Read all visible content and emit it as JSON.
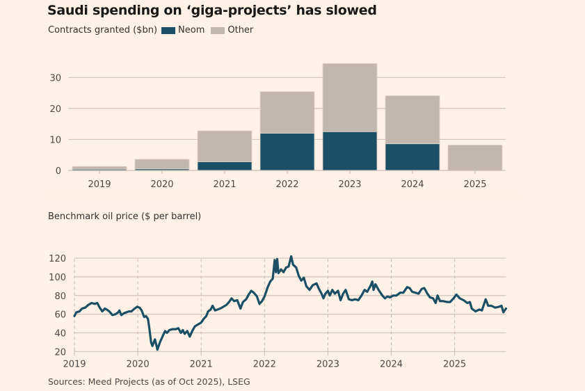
{
  "title": "Saudi spending on ‘giga-projects’ has slowed",
  "colors": {
    "background": "#FFF1E5",
    "neom": "#1A4F66",
    "other": "#C1B7AE",
    "line": "#1A4F66",
    "grid": "#CEC4BB",
    "text": "#33302E"
  },
  "source": "Sources: Meed Projects (as of Oct 2025), LSEG",
  "chart_data": [
    {
      "type": "bar",
      "stacked": true,
      "subtitle": "Contracts granted ($bn)",
      "legend": [
        {
          "name": "Neom",
          "color": "#1A4F66"
        },
        {
          "name": "Other",
          "color": "#C1B7AE"
        }
      ],
      "legend_placement": "top-left, inline with subtitle",
      "categories": [
        "2019",
        "2020",
        "2021",
        "2022",
        "2023",
        "2024",
        "2025"
      ],
      "series": [
        {
          "name": "Neom",
          "values": [
            0.4,
            0.5,
            2.8,
            12.0,
            12.5,
            8.6,
            0.0
          ]
        },
        {
          "name": "Other",
          "values": [
            0.9,
            3.1,
            10.0,
            13.4,
            22.0,
            15.5,
            8.2
          ]
        }
      ],
      "totals": [
        1.3,
        3.6,
        12.8,
        25.4,
        34.5,
        24.1,
        8.2
      ],
      "ylim": [
        0,
        35
      ],
      "yticks": [
        0,
        10,
        20,
        30
      ],
      "grid": true,
      "xlabel": "",
      "ylabel": ""
    },
    {
      "type": "line",
      "subtitle": "Benchmark oil price ($ per barrel)",
      "xlim": [
        2019.0,
        2025.81
      ],
      "ylim": [
        20,
        125
      ],
      "yticks": [
        20,
        40,
        60,
        80,
        100,
        120
      ],
      "xticks": [
        "2019",
        "2020",
        "2021",
        "2022",
        "2023",
        "2024",
        "2025"
      ],
      "grid": true,
      "xlabel": "",
      "ylabel": "",
      "series": [
        {
          "name": "Benchmark oil price",
          "points": [
            [
              2019.0,
              58
            ],
            [
              2019.03,
              62
            ],
            [
              2019.08,
              63
            ],
            [
              2019.12,
              66
            ],
            [
              2019.17,
              67
            ],
            [
              2019.22,
              70
            ],
            [
              2019.27,
              72
            ],
            [
              2019.32,
              71
            ],
            [
              2019.36,
              72
            ],
            [
              2019.4,
              67
            ],
            [
              2019.44,
              63
            ],
            [
              2019.48,
              66
            ],
            [
              2019.51,
              65
            ],
            [
              2019.55,
              63
            ],
            [
              2019.6,
              59
            ],
            [
              2019.65,
              60
            ],
            [
              2019.69,
              62
            ],
            [
              2019.71,
              64
            ],
            [
              2019.74,
              59
            ],
            [
              2019.78,
              61
            ],
            [
              2019.82,
              62
            ],
            [
              2019.86,
              63
            ],
            [
              2019.9,
              63
            ],
            [
              2019.95,
              66
            ],
            [
              2019.99,
              68
            ],
            [
              2020.03,
              67
            ],
            [
              2020.06,
              64
            ],
            [
              2020.1,
              57
            ],
            [
              2020.13,
              58
            ],
            [
              2020.16,
              55
            ],
            [
              2020.18,
              46
            ],
            [
              2020.21,
              30
            ],
            [
              2020.23,
              26
            ],
            [
              2020.27,
              33
            ],
            [
              2020.29,
              28
            ],
            [
              2020.31,
              22
            ],
            [
              2020.35,
              30
            ],
            [
              2020.39,
              36
            ],
            [
              2020.43,
              42
            ],
            [
              2020.46,
              40
            ],
            [
              2020.5,
              43
            ],
            [
              2020.55,
              44
            ],
            [
              2020.6,
              44
            ],
            [
              2020.64,
              45
            ],
            [
              2020.68,
              40
            ],
            [
              2020.71,
              43
            ],
            [
              2020.74,
              39
            ],
            [
              2020.78,
              42
            ],
            [
              2020.82,
              36
            ],
            [
              2020.86,
              42
            ],
            [
              2020.9,
              47
            ],
            [
              2020.95,
              49
            ],
            [
              2021.0,
              51
            ],
            [
              2021.04,
              55
            ],
            [
              2021.08,
              58
            ],
            [
              2021.11,
              63
            ],
            [
              2021.15,
              65
            ],
            [
              2021.18,
              69
            ],
            [
              2021.22,
              64
            ],
            [
              2021.26,
              65
            ],
            [
              2021.3,
              66
            ],
            [
              2021.35,
              68
            ],
            [
              2021.4,
              70
            ],
            [
              2021.44,
              73
            ],
            [
              2021.48,
              77
            ],
            [
              2021.52,
              74
            ],
            [
              2021.57,
              75
            ],
            [
              2021.62,
              66
            ],
            [
              2021.66,
              73
            ],
            [
              2021.71,
              76
            ],
            [
              2021.75,
              81
            ],
            [
              2021.79,
              85
            ],
            [
              2021.83,
              83
            ],
            [
              2021.88,
              79
            ],
            [
              2021.92,
              71
            ],
            [
              2021.96,
              74
            ],
            [
              2022.0,
              79
            ],
            [
              2022.05,
              89
            ],
            [
              2022.09,
              95
            ],
            [
              2022.13,
              98
            ],
            [
              2022.16,
              118
            ],
            [
              2022.18,
              105
            ],
            [
              2022.2,
              119
            ],
            [
              2022.22,
              104
            ],
            [
              2022.26,
              108
            ],
            [
              2022.3,
              105
            ],
            [
              2022.34,
              110
            ],
            [
              2022.38,
              111
            ],
            [
              2022.42,
              122
            ],
            [
              2022.45,
              113
            ],
            [
              2022.5,
              110
            ],
            [
              2022.54,
              101
            ],
            [
              2022.58,
              96
            ],
            [
              2022.62,
              99
            ],
            [
              2022.66,
              90
            ],
            [
              2022.71,
              86
            ],
            [
              2022.76,
              91
            ],
            [
              2022.82,
              93
            ],
            [
              2022.86,
              87
            ],
            [
              2022.9,
              82
            ],
            [
              2022.93,
              77
            ],
            [
              2022.96,
              82
            ],
            [
              2023.0,
              85
            ],
            [
              2023.03,
              80
            ],
            [
              2023.07,
              86
            ],
            [
              2023.11,
              82
            ],
            [
              2023.16,
              85
            ],
            [
              2023.2,
              75
            ],
            [
              2023.24,
              82
            ],
            [
              2023.28,
              86
            ],
            [
              2023.33,
              76
            ],
            [
              2023.38,
              75
            ],
            [
              2023.43,
              76
            ],
            [
              2023.48,
              75
            ],
            [
              2023.53,
              80
            ],
            [
              2023.58,
              86
            ],
            [
              2023.62,
              84
            ],
            [
              2023.67,
              90
            ],
            [
              2023.7,
              95
            ],
            [
              2023.72,
              86
            ],
            [
              2023.75,
              92
            ],
            [
              2023.8,
              86
            ],
            [
              2023.86,
              80
            ],
            [
              2023.9,
              77
            ],
            [
              2023.94,
              79
            ],
            [
              2023.98,
              78
            ],
            [
              2024.03,
              80
            ],
            [
              2024.08,
              80
            ],
            [
              2024.14,
              83
            ],
            [
              2024.19,
              83
            ],
            [
              2024.25,
              89
            ],
            [
              2024.29,
              88
            ],
            [
              2024.33,
              84
            ],
            [
              2024.38,
              83
            ],
            [
              2024.43,
              82
            ],
            [
              2024.48,
              87
            ],
            [
              2024.52,
              88
            ],
            [
              2024.57,
              82
            ],
            [
              2024.61,
              78
            ],
            [
              2024.66,
              77
            ],
            [
              2024.7,
              72
            ],
            [
              2024.73,
              80
            ],
            [
              2024.77,
              74
            ],
            [
              2024.82,
              74
            ],
            [
              2024.88,
              73
            ],
            [
              2024.93,
              73
            ],
            [
              2024.97,
              76
            ],
            [
              2025.03,
              81
            ],
            [
              2025.08,
              77
            ],
            [
              2025.14,
              75
            ],
            [
              2025.2,
              72
            ],
            [
              2025.24,
              73
            ],
            [
              2025.27,
              66
            ],
            [
              2025.33,
              63
            ],
            [
              2025.39,
              65
            ],
            [
              2025.43,
              64
            ],
            [
              2025.47,
              72
            ],
            [
              2025.49,
              76
            ],
            [
              2025.53,
              69
            ],
            [
              2025.58,
              69
            ],
            [
              2025.64,
              67
            ],
            [
              2025.7,
              68
            ],
            [
              2025.74,
              69
            ],
            [
              2025.77,
              62
            ],
            [
              2025.81,
              66
            ]
          ]
        }
      ]
    }
  ]
}
